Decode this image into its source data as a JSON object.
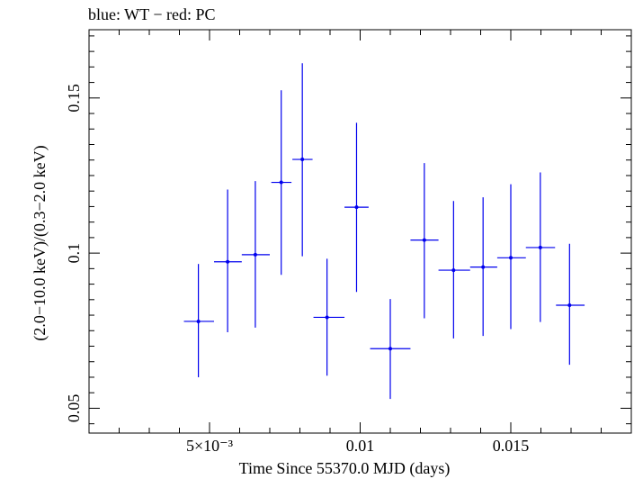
{
  "chart_data": {
    "type": "scatter",
    "title": "blue: WT − red: PC",
    "xlabel": "Time Since 55370.0 MJD (days)",
    "ylabel": "(2.0−10.0 keV)/(0.3−2.0 keV)",
    "xlim": [
      0.001,
      0.019
    ],
    "ylim": [
      0.042,
      0.172
    ],
    "log_x": false,
    "log_y": false,
    "grid": false,
    "x_ticks": [
      {
        "value": 0.005,
        "label": "5×10⁻³"
      },
      {
        "value": 0.01,
        "label": "0.01"
      },
      {
        "value": 0.015,
        "label": "0.015"
      }
    ],
    "y_ticks": [
      {
        "value": 0.05,
        "label": "0.05"
      },
      {
        "value": 0.1,
        "label": "0.1"
      },
      {
        "value": 0.15,
        "label": "0.15"
      }
    ],
    "series": [
      {
        "color": "#0000ee",
        "points": [
          {
            "x": 0.00463,
            "y": 0.078,
            "x_lo": 0.00415,
            "x_hi": 0.00515,
            "y_lo": 0.06,
            "y_hi": 0.0965
          },
          {
            "x": 0.0056,
            "y": 0.0972,
            "x_lo": 0.00515,
            "x_hi": 0.00607,
            "y_lo": 0.0745,
            "y_hi": 0.1205
          },
          {
            "x": 0.00652,
            "y": 0.0995,
            "x_lo": 0.00607,
            "x_hi": 0.007,
            "y_lo": 0.076,
            "y_hi": 0.1232
          },
          {
            "x": 0.00738,
            "y": 0.1228,
            "x_lo": 0.00705,
            "x_hi": 0.00772,
            "y_lo": 0.093,
            "y_hi": 0.1525
          },
          {
            "x": 0.00808,
            "y": 0.1302,
            "x_lo": 0.00775,
            "x_hi": 0.00842,
            "y_lo": 0.099,
            "y_hi": 0.1612
          },
          {
            "x": 0.0089,
            "y": 0.0793,
            "x_lo": 0.00845,
            "x_hi": 0.00948,
            "y_lo": 0.0605,
            "y_hi": 0.0982
          },
          {
            "x": 0.00988,
            "y": 0.1148,
            "x_lo": 0.00948,
            "x_hi": 0.01028,
            "y_lo": 0.0875,
            "y_hi": 0.142
          },
          {
            "x": 0.011,
            "y": 0.0692,
            "x_lo": 0.01033,
            "x_hi": 0.01167,
            "y_lo": 0.053,
            "y_hi": 0.0852
          },
          {
            "x": 0.01213,
            "y": 0.1042,
            "x_lo": 0.01167,
            "x_hi": 0.0126,
            "y_lo": 0.079,
            "y_hi": 0.129
          },
          {
            "x": 0.0131,
            "y": 0.0945,
            "x_lo": 0.0126,
            "x_hi": 0.01365,
            "y_lo": 0.0725,
            "y_hi": 0.1168
          },
          {
            "x": 0.01408,
            "y": 0.0955,
            "x_lo": 0.01365,
            "x_hi": 0.01455,
            "y_lo": 0.0733,
            "y_hi": 0.118
          },
          {
            "x": 0.015,
            "y": 0.0985,
            "x_lo": 0.01455,
            "x_hi": 0.0155,
            "y_lo": 0.0755,
            "y_hi": 0.1222
          },
          {
            "x": 0.01598,
            "y": 0.1018,
            "x_lo": 0.0155,
            "x_hi": 0.01647,
            "y_lo": 0.0778,
            "y_hi": 0.126
          },
          {
            "x": 0.01695,
            "y": 0.0832,
            "x_lo": 0.0165,
            "x_hi": 0.01745,
            "y_lo": 0.064,
            "y_hi": 0.103
          }
        ]
      }
    ]
  }
}
